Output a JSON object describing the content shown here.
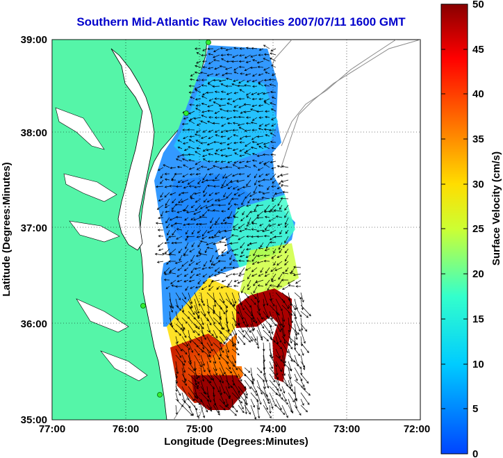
{
  "title": "Southern Mid-Atlantic Raw Velocities 2007/07/11 1600 GMT",
  "map": {
    "xlabel": "Longitude (Degrees:Minutes)",
    "ylabel": "Latitude (Degrees:Minutes)",
    "x_ticks": [
      "77:00",
      "76:00",
      "75:00",
      "74:00",
      "73:00",
      "72:00"
    ],
    "y_ticks": [
      "39:00",
      "38:00",
      "37:00",
      "36:00",
      "35:00"
    ],
    "xlim": [
      -77,
      -72
    ],
    "ylim": [
      35,
      39
    ],
    "land_color": "#55f5a8",
    "grid": true
  },
  "colorbar": {
    "label": "Surface Velocity (cm/s)",
    "ticks": [
      "50",
      "45",
      "40",
      "35",
      "30",
      "25",
      "20",
      "15",
      "10",
      "5",
      "0"
    ],
    "range": [
      0,
      50
    ]
  }
}
